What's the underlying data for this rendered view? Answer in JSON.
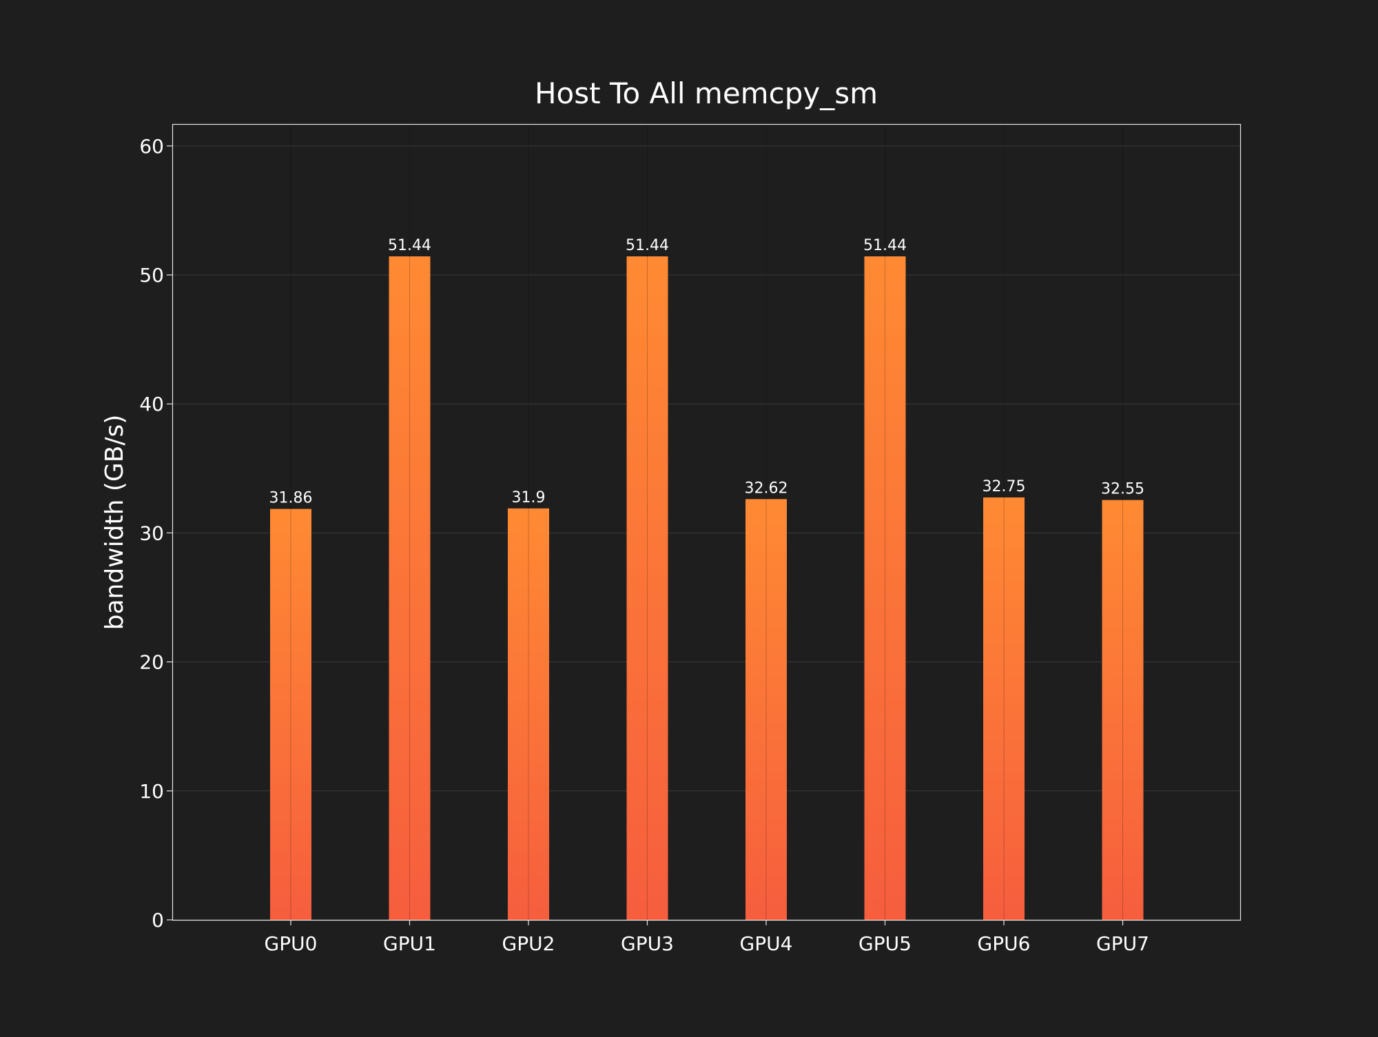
{
  "chart_data": {
    "type": "bar",
    "title": "Host To All memcpy_sm",
    "xlabel": "",
    "ylabel": "bandwidth (GB/s)",
    "categories": [
      "GPU0",
      "GPU1",
      "GPU2",
      "GPU3",
      "GPU4",
      "GPU5",
      "GPU6",
      "GPU7"
    ],
    "values": [
      31.86,
      51.44,
      31.9,
      51.44,
      32.62,
      51.44,
      32.75,
      32.55
    ],
    "value_labels": [
      "31.86",
      "51.44",
      "31.9",
      "51.44",
      "32.62",
      "51.44",
      "32.75",
      "32.55"
    ],
    "ylim": [
      0,
      61.7
    ],
    "yticks": [
      0,
      10,
      20,
      30,
      40,
      50,
      60
    ],
    "ytick_labels": [
      "0",
      "10",
      "20",
      "30",
      "40",
      "50",
      "60"
    ],
    "grid": true,
    "colors": {
      "background": "#1e1e1e",
      "bar_top": "#ff8a33",
      "bar_bottom": "#f65e3e",
      "grid": "#3a3a3a",
      "axes": "#e8e8e8",
      "text": "#ffffff"
    }
  }
}
